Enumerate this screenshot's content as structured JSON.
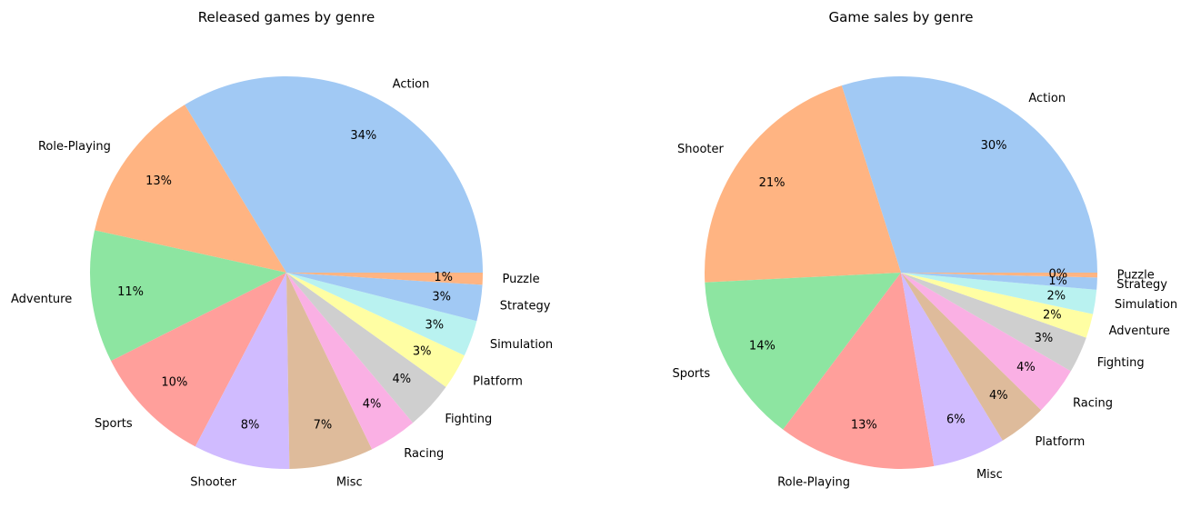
{
  "chart_data": [
    {
      "type": "pie",
      "title": "Released games by genre",
      "categories": [
        "Action",
        "Role-Playing",
        "Adventure",
        "Sports",
        "Shooter",
        "Misc",
        "Racing",
        "Fighting",
        "Platform",
        "Simulation",
        "Strategy",
        "Puzzle"
      ],
      "values": [
        34,
        13,
        11,
        10,
        8,
        7,
        4,
        4,
        3,
        3,
        3,
        1
      ],
      "percent_labels": [
        "34%",
        "13%",
        "11%",
        "10%",
        "8%",
        "7%",
        "4%",
        "4%",
        "3%",
        "3%",
        "3%",
        "1%"
      ],
      "colors": [
        "#a1c9f4",
        "#ffb482",
        "#8de5a1",
        "#ff9f9b",
        "#d0bbff",
        "#debb9b",
        "#fab0e4",
        "#cfcfcf",
        "#fffea3",
        "#b9f2f0",
        "#a1c9f4",
        "#ffb482"
      ]
    },
    {
      "type": "pie",
      "title": "Game sales by genre",
      "categories": [
        "Action",
        "Shooter",
        "Sports",
        "Role-Playing",
        "Misc",
        "Platform",
        "Racing",
        "Fighting",
        "Adventure",
        "Simulation",
        "Strategy",
        "Puzzle"
      ],
      "values": [
        30,
        21,
        14,
        13,
        6,
        4,
        4,
        3,
        2,
        2,
        1,
        0.4
      ],
      "percent_labels": [
        "30%",
        "21%",
        "14%",
        "13%",
        "6%",
        "4%",
        "4%",
        "3%",
        "2%",
        "2%",
        "1%",
        "0%"
      ],
      "colors": [
        "#a1c9f4",
        "#ffb482",
        "#8de5a1",
        "#ff9f9b",
        "#d0bbff",
        "#debb9b",
        "#fab0e4",
        "#cfcfcf",
        "#fffea3",
        "#b9f2f0",
        "#a1c9f4",
        "#ffb482"
      ]
    }
  ]
}
